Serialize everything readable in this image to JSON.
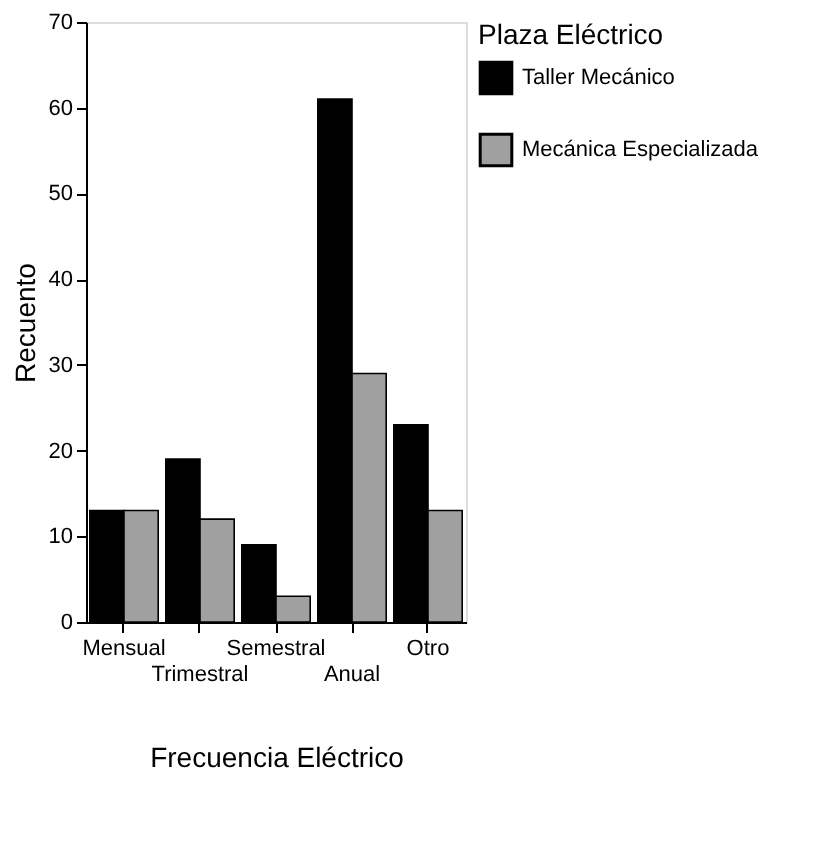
{
  "chart_data": {
    "type": "bar",
    "xlabel": "Frecuencia Eléctrico",
    "ylabel": "Recuento",
    "legend_title": "Plaza Eléctrico",
    "categories": [
      "Mensual",
      "Trimestral",
      "Semestral",
      "Anual",
      "Otro"
    ],
    "series": [
      {
        "name": "Taller Mecánico",
        "color": "#000000",
        "values": [
          13,
          19,
          9,
          61,
          23
        ]
      },
      {
        "name": "Mecánica Especializada",
        "color": "#a0a0a0",
        "values": [
          13,
          12,
          3,
          29,
          13
        ]
      }
    ],
    "ylim": [
      0,
      70
    ],
    "yticks": [
      0,
      10,
      20,
      30,
      40,
      50,
      60,
      70
    ],
    "grid": false,
    "legend": "right"
  }
}
